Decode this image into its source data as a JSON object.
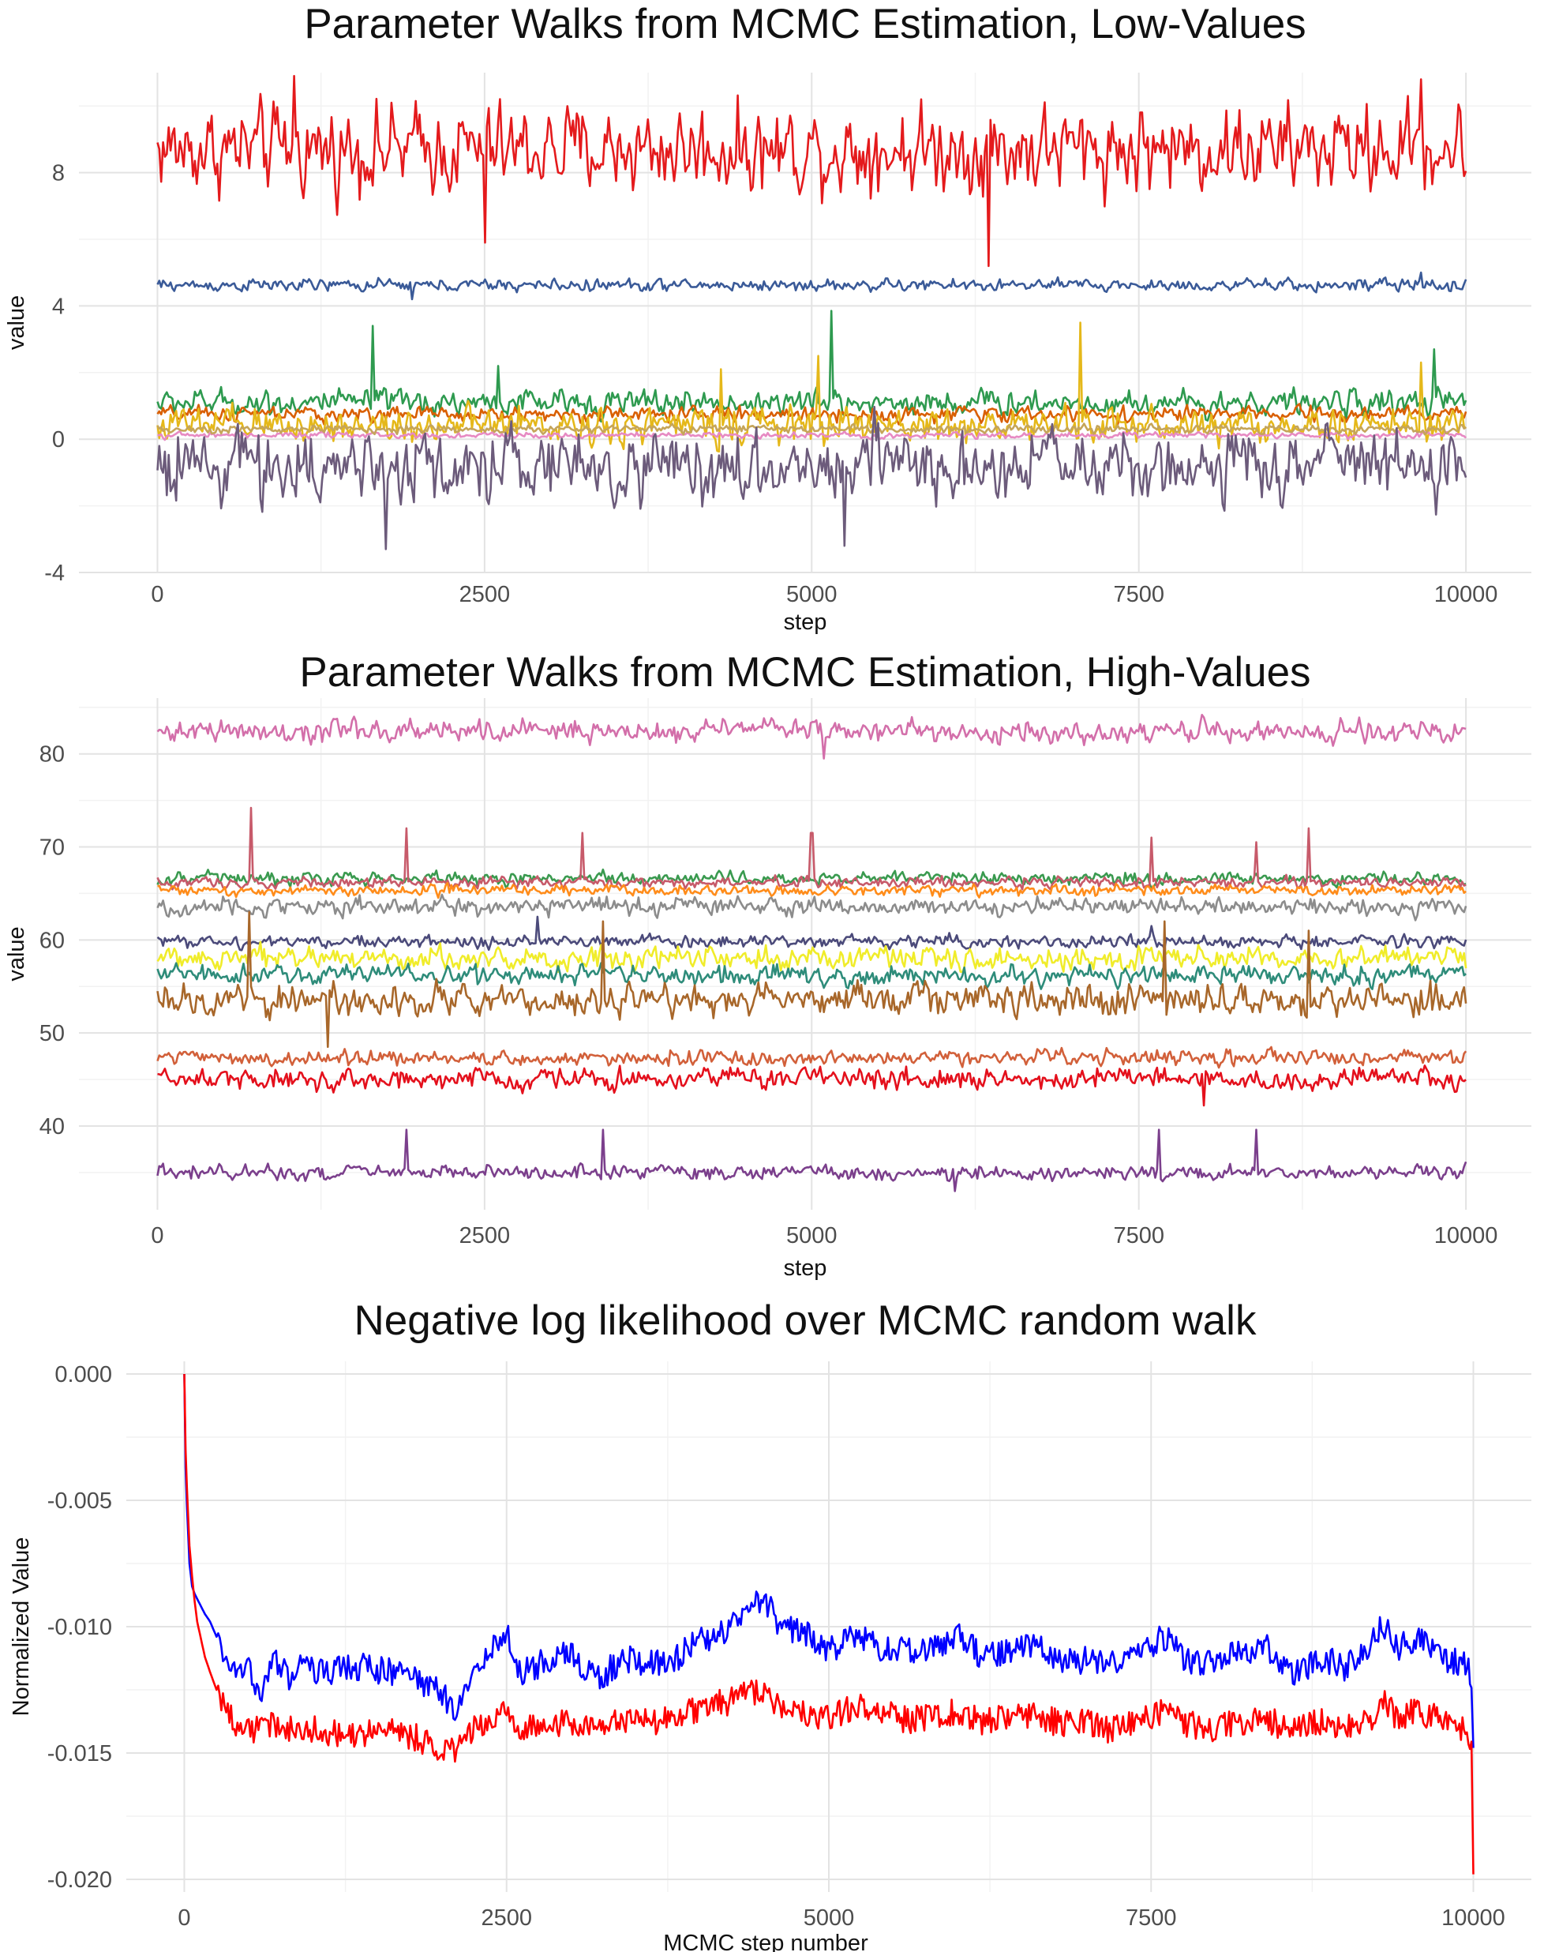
{
  "chart_data": [
    {
      "id": "low",
      "type": "line",
      "title": "Parameter Walks from MCMC Estimation, Low-Values",
      "xlabel": "step",
      "ylabel": "value",
      "xlim": [
        -600,
        10500
      ],
      "ylim": [
        -4,
        11
      ],
      "xticks": [
        0,
        2500,
        5000,
        7500,
        10000
      ],
      "xtick_labels": [
        "0",
        "2500",
        "5000",
        "7500",
        "10000"
      ],
      "yticks": [
        -4,
        0,
        4,
        8
      ],
      "ytick_labels": [
        "-4",
        "0",
        "4",
        "8"
      ],
      "grid": true,
      "legend": "none",
      "x_range": [
        0,
        10000
      ],
      "points_per_series": 700,
      "series": [
        {
          "color": "#E41A1C",
          "mean": 8.7,
          "noise": 0.85,
          "spikes": [
            [
              1050,
              10.9
            ],
            [
              2500,
              5.9
            ],
            [
              6350,
              5.2
            ],
            [
              9650,
              10.8
            ]
          ]
        },
        {
          "color": "#3A5A98",
          "mean": 4.62,
          "noise": 0.12,
          "spikes": [
            [
              1950,
              4.2
            ],
            [
              9650,
              5.0
            ]
          ]
        },
        {
          "color": "#2E9A4F",
          "mean": 1.1,
          "noise": 0.25,
          "spikes": [
            [
              2600,
              2.2
            ],
            [
              1650,
              3.4
            ],
            [
              5150,
              3.85
            ],
            [
              9750,
              2.7
            ]
          ]
        },
        {
          "color": "#D95F02",
          "mean": 0.75,
          "noise": 0.15,
          "spikes": []
        },
        {
          "color": "#E5B81A",
          "mean": 0.42,
          "noise": 0.35,
          "spikes": [
            [
              7050,
              3.5
            ],
            [
              5050,
              2.5
            ],
            [
              4300,
              2.1
            ],
            [
              9650,
              2.3
            ]
          ]
        },
        {
          "color": "#E78AC3",
          "mean": 0.12,
          "noise": 0.06,
          "spikes": []
        },
        {
          "color": "#C5A55A",
          "mean": 0.3,
          "noise": 0.08,
          "spikes": []
        },
        {
          "color": "#6C5B7B",
          "mean": -0.8,
          "noise": 0.7,
          "spikes": [
            [
              1750,
              -3.3
            ],
            [
              5250,
              -3.2
            ]
          ]
        }
      ]
    },
    {
      "id": "high",
      "type": "line",
      "title": "Parameter Walks from MCMC Estimation, High-Values",
      "xlabel": "step",
      "ylabel": "value",
      "xlim": [
        -600,
        10500
      ],
      "ylim": [
        31,
        86
      ],
      "xticks": [
        0,
        2500,
        5000,
        7500,
        10000
      ],
      "xtick_labels": [
        "0",
        "2500",
        "5000",
        "7500",
        "10000"
      ],
      "yticks": [
        40,
        50,
        60,
        70,
        80
      ],
      "ytick_labels": [
        "40",
        "50",
        "60",
        "70",
        "80"
      ],
      "grid": true,
      "legend": "none",
      "x_range": [
        0,
        10000
      ],
      "points_per_series": 700,
      "series": [
        {
          "color": "#D36FAA",
          "mean": 82.4,
          "noise": 0.8,
          "spikes": [
            [
              5100,
              79.5
            ]
          ]
        },
        {
          "color": "#3A9A4F",
          "mean": 66.6,
          "noise": 0.45,
          "spikes": []
        },
        {
          "color": "#C75A6A",
          "mean": 66.2,
          "noise": 0.4,
          "spikes": [
            [
              720,
              74.2
            ],
            [
              1900,
              72.0
            ],
            [
              3250,
              71.5
            ],
            [
              5000,
              71.5
            ],
            [
              7600,
              71.0
            ],
            [
              8400,
              70.5
            ],
            [
              8800,
              72.0
            ]
          ]
        },
        {
          "color": "#FF8C1A",
          "mean": 65.3,
          "noise": 0.4,
          "spikes": []
        },
        {
          "color": "#8C8C8C",
          "mean": 63.6,
          "noise": 0.6,
          "spikes": []
        },
        {
          "color": "#4B4A7A",
          "mean": 59.8,
          "noise": 0.45,
          "spikes": [
            [
              2900,
              62.5
            ],
            [
              7600,
              61.5
            ]
          ]
        },
        {
          "color": "#F0EC2A",
          "mean": 58.0,
          "noise": 0.8,
          "spikes": []
        },
        {
          "color": "#2E8C7A",
          "mean": 56.2,
          "noise": 0.7,
          "spikes": []
        },
        {
          "color": "#A8672A",
          "mean": 53.5,
          "noise": 1.1,
          "spikes": [
            [
              700,
              63.0
            ],
            [
              3400,
              62.0
            ],
            [
              7700,
              62.0
            ],
            [
              8800,
              61.0
            ],
            [
              1300,
              48.5
            ]
          ]
        },
        {
          "color": "#D2603A",
          "mean": 47.3,
          "noise": 0.55,
          "spikes": []
        },
        {
          "color": "#E4101C",
          "mean": 45.0,
          "noise": 0.75,
          "spikes": [
            [
              8000,
              42.2
            ]
          ]
        },
        {
          "color": "#7B3F8C",
          "mean": 35.0,
          "noise": 0.5,
          "spikes": [
            [
              1900,
              39.6
            ],
            [
              3400,
              39.6
            ],
            [
              7650,
              39.6
            ],
            [
              8400,
              39.6
            ],
            [
              6100,
              33.0
            ]
          ]
        }
      ]
    },
    {
      "id": "nll",
      "type": "line",
      "title": "Negative log likelihood over MCMC random walk",
      "xlabel": "MCMC step number",
      "ylabel": "Normalized Value",
      "xlim": [
        -450,
        10450
      ],
      "ylim": [
        -0.0205,
        0.0005
      ],
      "xticks": [
        0,
        2500,
        5000,
        7500,
        10000
      ],
      "xtick_labels": [
        "0",
        "2500",
        "5000",
        "7500",
        "10000"
      ],
      "yticks": [
        -0.02,
        -0.015,
        -0.01,
        -0.005,
        0.0
      ],
      "ytick_labels": [
        "-0.020",
        "-0.015",
        "-0.010",
        "-0.005",
        "0.000"
      ],
      "grid": true,
      "legend": "none",
      "series": [
        {
          "color": "#0000FF",
          "x": [
            0,
            10,
            20,
            40,
            60,
            80,
            100,
            130,
            160,
            200,
            250,
            300,
            400,
            500,
            600,
            700,
            800,
            900,
            1000,
            1200,
            1400,
            1600,
            1800,
            2000,
            2100,
            2200,
            2300,
            2400,
            2500,
            2600,
            2800,
            3000,
            3200,
            3400,
            3600,
            3800,
            4000,
            4200,
            4400,
            4500,
            4600,
            4800,
            5000,
            5200,
            5400,
            5600,
            5800,
            6000,
            6200,
            6400,
            6600,
            6800,
            7000,
            7200,
            7400,
            7600,
            7800,
            8000,
            8200,
            8400,
            8600,
            8800,
            9000,
            9200,
            9300,
            9400,
            9600,
            9800,
            9950,
            9985,
            10000
          ],
          "y": [
            0.0,
            -0.0037,
            -0.0052,
            -0.0075,
            -0.0084,
            -0.0087,
            -0.0089,
            -0.0092,
            -0.0095,
            -0.0098,
            -0.0104,
            -0.0109,
            -0.0118,
            -0.0116,
            -0.0128,
            -0.0113,
            -0.012,
            -0.0115,
            -0.0118,
            -0.0117,
            -0.0116,
            -0.0118,
            -0.012,
            -0.0127,
            -0.0133,
            -0.0125,
            -0.0116,
            -0.0108,
            -0.0103,
            -0.0118,
            -0.0114,
            -0.011,
            -0.0121,
            -0.0113,
            -0.0114,
            -0.0113,
            -0.0105,
            -0.0102,
            -0.0093,
            -0.0088,
            -0.0099,
            -0.0102,
            -0.0109,
            -0.0104,
            -0.0108,
            -0.011,
            -0.0108,
            -0.0104,
            -0.0112,
            -0.011,
            -0.0108,
            -0.0114,
            -0.0113,
            -0.0115,
            -0.011,
            -0.0104,
            -0.0114,
            -0.0113,
            -0.011,
            -0.0108,
            -0.012,
            -0.0112,
            -0.0116,
            -0.0107,
            -0.0099,
            -0.0108,
            -0.0106,
            -0.0113,
            -0.0116,
            -0.0122,
            -0.0148
          ]
        },
        {
          "color": "#FF0000",
          "x": [
            0,
            10,
            20,
            40,
            60,
            80,
            100,
            130,
            160,
            200,
            250,
            300,
            400,
            500,
            600,
            700,
            800,
            900,
            1000,
            1200,
            1400,
            1600,
            1800,
            2000,
            2100,
            2200,
            2300,
            2400,
            2500,
            2600,
            2800,
            3000,
            3200,
            3400,
            3600,
            3800,
            4000,
            4200,
            4400,
            4500,
            4600,
            4800,
            5000,
            5200,
            5400,
            5600,
            5800,
            6000,
            6200,
            6400,
            6600,
            6800,
            7000,
            7200,
            7400,
            7600,
            7800,
            8000,
            8200,
            8400,
            8600,
            8800,
            9000,
            9200,
            9300,
            9400,
            9600,
            9800,
            9950,
            9985,
            10000
          ],
          "y": [
            0.0,
            -0.003,
            -0.0045,
            -0.0068,
            -0.008,
            -0.009,
            -0.0098,
            -0.0105,
            -0.0112,
            -0.0118,
            -0.0125,
            -0.0131,
            -0.0138,
            -0.0142,
            -0.014,
            -0.0139,
            -0.0141,
            -0.0141,
            -0.014,
            -0.0143,
            -0.0142,
            -0.0141,
            -0.0144,
            -0.0148,
            -0.015,
            -0.0143,
            -0.0138,
            -0.0136,
            -0.0135,
            -0.014,
            -0.0139,
            -0.0138,
            -0.014,
            -0.0137,
            -0.0138,
            -0.0136,
            -0.0132,
            -0.013,
            -0.0126,
            -0.0125,
            -0.0131,
            -0.0134,
            -0.0136,
            -0.0131,
            -0.0133,
            -0.0137,
            -0.0135,
            -0.0134,
            -0.0138,
            -0.0136,
            -0.0134,
            -0.0139,
            -0.0138,
            -0.0141,
            -0.0137,
            -0.0134,
            -0.0139,
            -0.014,
            -0.0138,
            -0.0137,
            -0.0141,
            -0.0138,
            -0.0139,
            -0.0136,
            -0.013,
            -0.0135,
            -0.0134,
            -0.0138,
            -0.0141,
            -0.0148,
            -0.0198
          ]
        }
      ]
    }
  ]
}
